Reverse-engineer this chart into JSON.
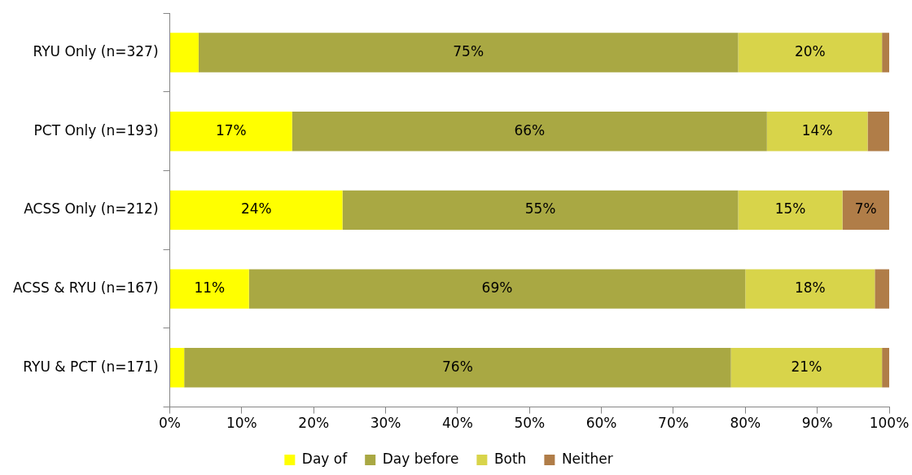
{
  "chart_data": {
    "type": "bar",
    "orientation": "horizontal",
    "stacked": true,
    "categories": [
      "RYU Only (n=327)",
      "PCT Only (n=193)",
      "ACSS Only (n=212)",
      "ACSS & RYU (n=167)",
      "RYU & PCT (n=171)"
    ],
    "series": [
      {
        "name": "Day of",
        "color": "#ffff00",
        "values": [
          4,
          17,
          24,
          11,
          2
        ],
        "value_labels": [
          null,
          "17%",
          "24%",
          "11%",
          null
        ]
      },
      {
        "name": "Day before",
        "color": "#a9a843",
        "values": [
          75,
          66,
          55,
          69,
          76
        ],
        "value_labels": [
          "75%",
          "66%",
          "55%",
          "69%",
          "76%"
        ]
      },
      {
        "name": "Both",
        "color": "#d8d44a",
        "values": [
          20,
          14,
          14.5,
          18,
          21
        ],
        "value_labels": [
          "20%",
          "14%",
          "15%",
          "18%",
          "21%"
        ]
      },
      {
        "name": "Neither",
        "color": "#b07d48",
        "values": [
          1,
          3,
          6.5,
          2,
          1
        ],
        "value_labels": [
          null,
          null,
          "7%",
          null,
          null
        ]
      }
    ],
    "xlim": [
      0,
      100
    ],
    "xticks": [
      {
        "value": 0,
        "label": "0%"
      },
      {
        "value": 10,
        "label": "10%"
      },
      {
        "value": 20,
        "label": "20%"
      },
      {
        "value": 30,
        "label": "30%"
      },
      {
        "value": 40,
        "label": "40%"
      },
      {
        "value": 50,
        "label": "50%"
      },
      {
        "value": 60,
        "label": "60%"
      },
      {
        "value": 70,
        "label": "70%"
      },
      {
        "value": 80,
        "label": "80%"
      },
      {
        "value": 90,
        "label": "90%"
      },
      {
        "value": 100,
        "label": "100%"
      }
    ],
    "grid": false,
    "legend": "bottom"
  }
}
